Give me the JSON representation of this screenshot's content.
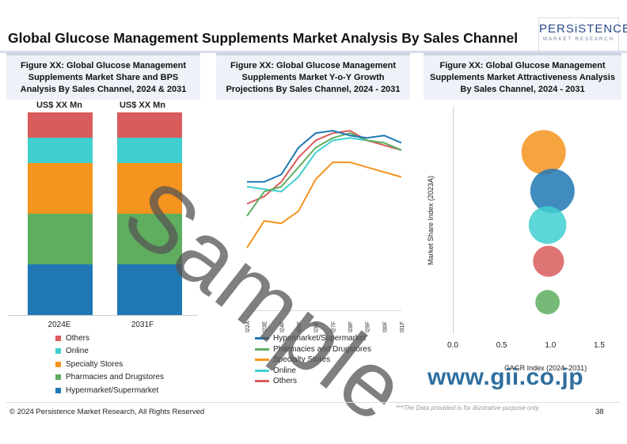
{
  "page": {
    "title": "Global Glucose Management Supplements Market Analysis By Sales Channel",
    "logo_name": "PERSiSTENCE",
    "logo_tagline": "MARKET RESEARCH",
    "watermark": "Sample",
    "gii_mark": "www.gii.co.jp",
    "footer_left": "© 2024 Persistence Market Research, All Rights Reserved",
    "footer_note": "***The Data provided is for illustrative purpose only.",
    "footer_page": "38"
  },
  "panels": {
    "panel1_title": "Figure XX: Global Glucose Management Supplements Market Share and BPS Analysis By Sales Channel, 2024 & 2031",
    "panel2_title": "Figure XX: Global Glucose Management Supplements Market Y-o-Y Growth Projections By Sales Channel, 2024 - 2031",
    "panel3_title": "Figure XX: Global Glucose Management Supplements Market Attractiveness Analysis By Sales Channel, 2024 - 2031"
  },
  "colors": {
    "Hypermarket/Supermarket": "#1f78b4",
    "Pharmacies and Drugstores": "#5fae5f",
    "Specialty Stores": "#f5941e",
    "Online": "#3fcfcf",
    "Others": "#d95c5c"
  },
  "chart_data": [
    {
      "type": "bar",
      "stacked": true,
      "categories": [
        "2024E",
        "2031F"
      ],
      "column_labels": [
        "US$ XX Mn",
        "US$ XX Mn"
      ],
      "series": [
        {
          "name": "Hypermarket/Supermarket",
          "values": [
            25,
            25
          ]
        },
        {
          "name": "Pharmacies and Drugstores",
          "values": [
            25,
            25
          ]
        },
        {
          "name": "Specialty Stores",
          "values": [
            25,
            25
          ]
        },
        {
          "name": "Online",
          "values": [
            12.5,
            12.5
          ]
        },
        {
          "name": "Others",
          "values": [
            12.5,
            12.5
          ]
        }
      ],
      "ylim": [
        0,
        100
      ],
      "legend_order": [
        "Others",
        "Online",
        "Specialty Stores",
        "Pharmacies and Drugstores",
        "Hypermarket/Supermarket"
      ],
      "legend_position": "bottom"
    },
    {
      "type": "line",
      "x": [
        "2022A",
        "2023E",
        "2024F",
        "2025F",
        "2026F",
        "2027F",
        "2028F",
        "2029F",
        "2030F",
        "2031F"
      ],
      "series": [
        {
          "name": "Hypermarket/Supermarket",
          "values": [
            5.2,
            5.2,
            5.5,
            6.6,
            7.2,
            7.3,
            7.1,
            7.0,
            7.1,
            6.8
          ]
        },
        {
          "name": "Pharmacies and Drugstores",
          "values": [
            3.8,
            4.8,
            5.0,
            5.8,
            6.6,
            7.0,
            7.2,
            6.9,
            6.8,
            6.5
          ]
        },
        {
          "name": "Specialty Stores",
          "values": [
            2.5,
            3.6,
            3.5,
            4.0,
            5.3,
            6.0,
            6.0,
            5.8,
            5.6,
            5.4
          ]
        },
        {
          "name": "Online",
          "values": [
            5.0,
            4.9,
            4.8,
            5.4,
            6.4,
            6.9,
            7.0,
            6.9,
            6.8,
            6.5
          ]
        },
        {
          "name": "Others",
          "values": [
            4.3,
            4.6,
            5.2,
            6.2,
            6.9,
            7.2,
            7.3,
            6.9,
            6.7,
            6.5
          ]
        }
      ],
      "legend_position": "bottom"
    },
    {
      "type": "scatter",
      "bubble": true,
      "xlabel": "CAGR Index (2024–2031)",
      "ylabel": "Market Share Index (2023A)",
      "xticks": [
        "0.0",
        "0.5",
        "1.0",
        "1.5"
      ],
      "xlim": [
        0.0,
        1.5
      ],
      "ylim": [
        0,
        100
      ],
      "points": [
        {
          "name": "Specialty Stores",
          "x": 0.93,
          "y": 80,
          "size": 1.0
        },
        {
          "name": "Hypermarket/Supermarket",
          "x": 1.02,
          "y": 63,
          "size": 1.0
        },
        {
          "name": "Online",
          "x": 0.97,
          "y": 48,
          "size": 0.85
        },
        {
          "name": "Others",
          "x": 0.98,
          "y": 32,
          "size": 0.7
        },
        {
          "name": "Pharmacies and Drugstores",
          "x": 0.97,
          "y": 14,
          "size": 0.55
        }
      ]
    }
  ]
}
